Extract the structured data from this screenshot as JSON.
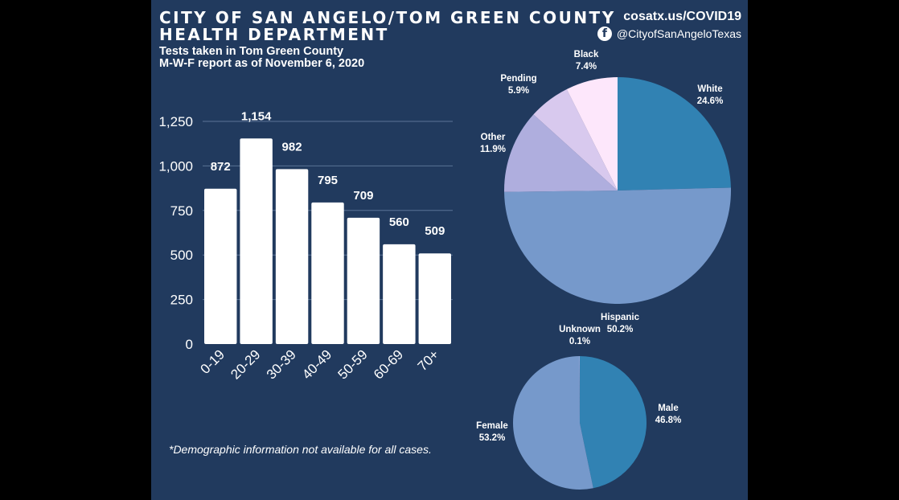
{
  "header": {
    "title_line1": "CITY OF SAN ANGELO/TOM GREEN COUNTY",
    "title_line2": "HEALTH DEPARTMENT",
    "subtitle_line1": "Tests taken in Tom Green County",
    "subtitle_line2": "M-W-F report as of November 6, 2020",
    "website": "cosatx.us/COVID19",
    "social_handle": "@CityofSanAngeloTexas",
    "social_icon": "facebook-icon"
  },
  "footnote": "*Demographic information not available for all cases.",
  "colors": {
    "background": "#213a5e",
    "bar": "#ffffff"
  },
  "chart_data": [
    {
      "type": "bar",
      "categories": [
        "0-19",
        "20-29",
        "30-39",
        "40-49",
        "50-59",
        "60-69",
        "70+"
      ],
      "values": [
        872,
        1154,
        982,
        795,
        709,
        560,
        509
      ],
      "value_labels": [
        "872",
        "1,154",
        "982",
        "795",
        "709",
        "560",
        "509"
      ],
      "yticks": [
        0,
        250,
        500,
        750,
        1000,
        1250
      ],
      "ytick_labels": [
        "0",
        "250",
        "500",
        "750",
        "1,000",
        "1,250"
      ],
      "ylim": [
        0,
        1250
      ],
      "grid": true
    },
    {
      "type": "pie",
      "slices": [
        {
          "name": "White",
          "pct": "24.6%",
          "value": 24.6,
          "color": "#3182b3"
        },
        {
          "name": "Hispanic",
          "pct": "50.2%",
          "value": 50.2,
          "color": "#7699cb"
        },
        {
          "name": "Other",
          "pct": "11.9%",
          "value": 11.9,
          "color": "#afaede"
        },
        {
          "name": "Pending",
          "pct": "5.9%",
          "value": 5.9,
          "color": "#d8c9ee"
        },
        {
          "name": "Black",
          "pct": "7.4%",
          "value": 7.4,
          "color": "#fde7fb"
        }
      ]
    },
    {
      "type": "pie",
      "slices": [
        {
          "name": "Male",
          "pct": "46.8%",
          "value": 46.8,
          "color": "#3182b3"
        },
        {
          "name": "Female",
          "pct": "53.2%",
          "value": 53.2,
          "color": "#7699cb"
        },
        {
          "name": "Unknown",
          "pct": "0.1%",
          "value": 0.1,
          "color": "#afaede"
        }
      ]
    }
  ]
}
